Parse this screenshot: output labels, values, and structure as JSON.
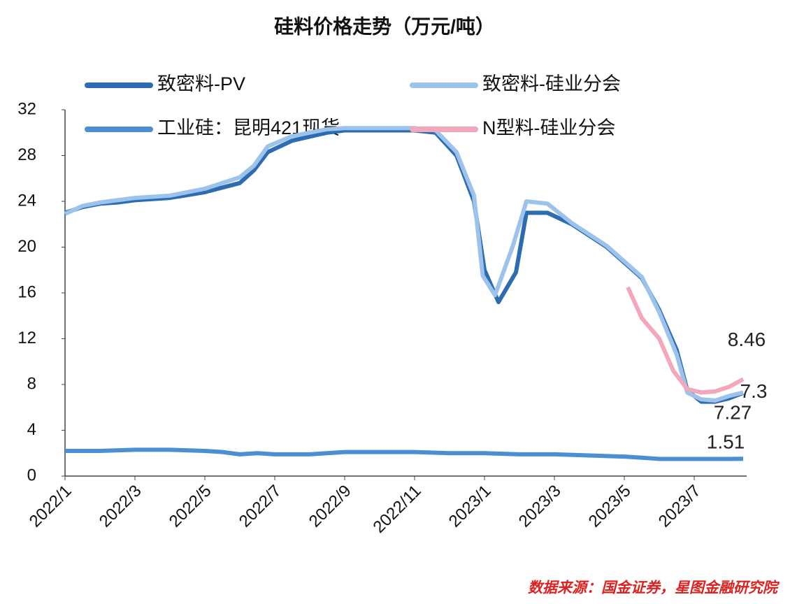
{
  "chart_data": {
    "type": "line",
    "title": "硅料价格走势（万元/吨）",
    "source": "数据来源：国金证券，星图金融研究院",
    "xlim": [
      0,
      19.5
    ],
    "xticks": [
      {
        "value": 0,
        "label": "2022/1"
      },
      {
        "value": 2,
        "label": "2022/3"
      },
      {
        "value": 4,
        "label": "2022/5"
      },
      {
        "value": 6,
        "label": "2022/7"
      },
      {
        "value": 8,
        "label": "2022/9"
      },
      {
        "value": 10,
        "label": "2022/11"
      },
      {
        "value": 12,
        "label": "2023/1"
      },
      {
        "value": 14,
        "label": "2023/3"
      },
      {
        "value": 16,
        "label": "2023/5"
      },
      {
        "value": 18,
        "label": "2023/7"
      }
    ],
    "ylim": [
      0,
      32
    ],
    "yticks": [
      0,
      4,
      8,
      12,
      16,
      20,
      24,
      28,
      32
    ],
    "series": [
      {
        "name": "工业硅：昆明421现货",
        "color": "#4a8fd6",
        "x": [
          0,
          1,
          2,
          3,
          4,
          4.5,
          5,
          5.5,
          6,
          7,
          7.5,
          8,
          9,
          10,
          11,
          12,
          13,
          14,
          15,
          16,
          16.5,
          17,
          18,
          19,
          19.4
        ],
        "values": [
          2.2,
          2.2,
          2.3,
          2.3,
          2.2,
          2.1,
          1.9,
          2.0,
          1.9,
          1.9,
          2.0,
          2.1,
          2.1,
          2.1,
          2.0,
          2.0,
          1.9,
          1.9,
          1.8,
          1.7,
          1.6,
          1.5,
          1.5,
          1.5,
          1.51
        ]
      },
      {
        "name": "致密料-PV",
        "color": "#2e6cb2",
        "x": [
          0,
          0.5,
          1,
          1.5,
          2,
          3,
          4,
          5,
          5.4,
          5.8,
          6.5,
          7.5,
          8,
          10,
          10.6,
          11.2,
          11.7,
          12.0,
          12.4,
          12.9,
          13.2,
          13.8,
          14.5,
          15.5,
          16.5,
          17.0,
          17.5,
          17.8,
          18.2,
          18.6,
          19,
          19.4
        ],
        "values": [
          23,
          23.5,
          23.8,
          23.9,
          24.1,
          24.3,
          24.8,
          25.6,
          26.7,
          28.3,
          29.3,
          30,
          30.2,
          30.2,
          30,
          28,
          24,
          18,
          15.2,
          17.8,
          23,
          23,
          22,
          20,
          17.3,
          14.5,
          11,
          7.5,
          6.5,
          6.5,
          6.8,
          7.27
        ]
      },
      {
        "name": "致密料-硅业分会",
        "color": "#9cc3eb",
        "x": [
          0,
          0.5,
          1,
          1.5,
          2,
          3,
          4,
          5,
          5.4,
          5.8,
          6.5,
          7.5,
          8,
          10,
          10.6,
          11.2,
          11.7,
          11.95,
          12.3,
          12.8,
          13.2,
          13.8,
          14.5,
          15.5,
          16.5,
          17.0,
          17.5,
          17.8,
          18.2,
          18.6,
          19,
          19.4
        ],
        "values": [
          22.9,
          23.6,
          23.9,
          24.1,
          24.3,
          24.5,
          25.1,
          26.1,
          27.1,
          28.8,
          29.7,
          30.3,
          30.4,
          30.4,
          30.2,
          28.3,
          24.5,
          17.5,
          15.8,
          20,
          24,
          23.8,
          22.1,
          20.1,
          17.4,
          14.3,
          10.6,
          7.3,
          6.7,
          6.6,
          7.0,
          7.3
        ]
      },
      {
        "name": "N型料-硅业分会",
        "color": "#f2a7bb",
        "x": [
          16.1,
          16.5,
          17.0,
          17.4,
          17.8,
          18.2,
          18.6,
          19,
          19.4
        ],
        "values": [
          16.5,
          13.8,
          12,
          9.2,
          7.6,
          7.3,
          7.4,
          7.8,
          8.46
        ]
      }
    ]
  }
}
